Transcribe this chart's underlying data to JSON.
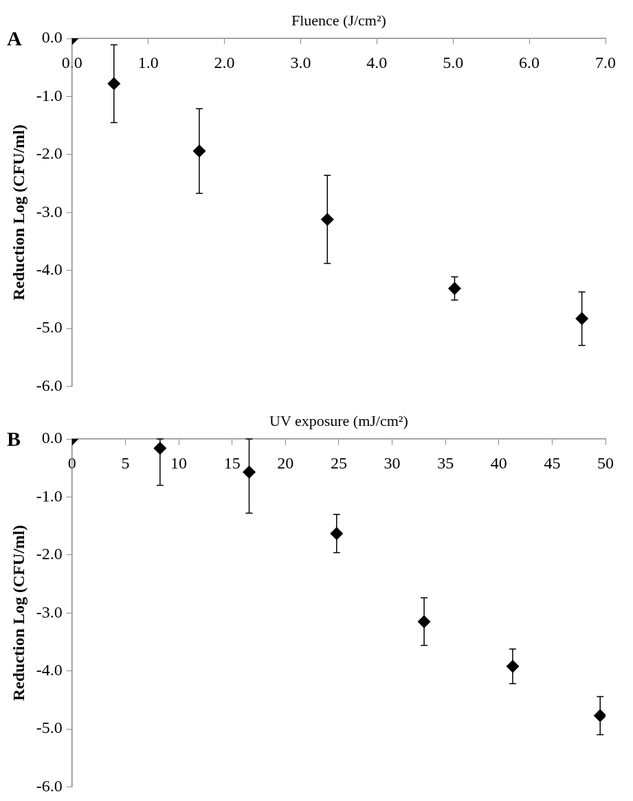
{
  "chart_data": [
    {
      "type": "scatter",
      "title": "A",
      "xlabel": "Fluence (J/cm²)",
      "ylabel": "Reduction Log (CFU/ml)",
      "marker": "diamond",
      "grid": false,
      "legend": false,
      "series": [
        {
          "color": "#000000",
          "x": [
            0,
            0.55,
            1.67,
            3.35,
            5.02,
            6.69
          ],
          "values": [
            0,
            -0.78,
            -1.94,
            -3.12,
            -4.31,
            -4.83
          ],
          "errors": [
            null,
            0.67,
            0.73,
            0.76,
            0.2,
            0.46
          ]
        }
      ],
      "xlim": [
        0,
        7
      ],
      "xticks": [
        {
          "value": 0,
          "label": "0.0"
        },
        {
          "value": 1,
          "label": "1.0"
        },
        {
          "value": 2,
          "label": "2.0"
        },
        {
          "value": 3,
          "label": "3.0"
        },
        {
          "value": 4,
          "label": "4.0"
        },
        {
          "value": 5,
          "label": "5.0"
        },
        {
          "value": 6,
          "label": "6.0"
        },
        {
          "value": 7,
          "label": "7.0"
        }
      ],
      "ylim": [
        -6,
        0
      ],
      "yticks": [
        {
          "value": 0,
          "label": "0.0"
        },
        {
          "value": -1,
          "label": "-1.0"
        },
        {
          "value": -2,
          "label": "-2.0"
        },
        {
          "value": -3,
          "label": "-3.0"
        },
        {
          "value": -4,
          "label": "-4.0"
        },
        {
          "value": -5,
          "label": "-5.0"
        },
        {
          "value": -6,
          "label": "-6.0"
        }
      ]
    },
    {
      "type": "scatter",
      "title": "B",
      "xlabel": "UV exposure (mJ/cm²)",
      "ylabel": "Reduction Log (CFU/ml)",
      "marker": "diamond",
      "grid": false,
      "legend": false,
      "series": [
        {
          "color": "#000000",
          "x": [
            0,
            8.25,
            16.6,
            24.8,
            33.0,
            41.3,
            49.5
          ],
          "values": [
            0,
            -0.16,
            -0.57,
            -1.63,
            -3.15,
            -3.92,
            -4.77
          ],
          "errors": [
            null,
            [
              -0.8,
              0
            ],
            [
              -1.28,
              0
            ],
            0.33,
            0.41,
            0.3,
            0.33
          ]
        }
      ],
      "xlim": [
        0,
        50
      ],
      "xticks": [
        0,
        5,
        10,
        15,
        20,
        25,
        30,
        35,
        40,
        45,
        50
      ],
      "ylim": [
        -6,
        0
      ],
      "yticks": [
        {
          "value": 0,
          "label": "0.0"
        },
        {
          "value": -1,
          "label": "-1.0"
        },
        {
          "value": -2,
          "label": "-2.0"
        },
        {
          "value": -3,
          "label": "-3.0"
        },
        {
          "value": -4,
          "label": "-4.0"
        },
        {
          "value": -5,
          "label": "-5.0"
        },
        {
          "value": -6,
          "label": "-6.0"
        }
      ]
    }
  ]
}
